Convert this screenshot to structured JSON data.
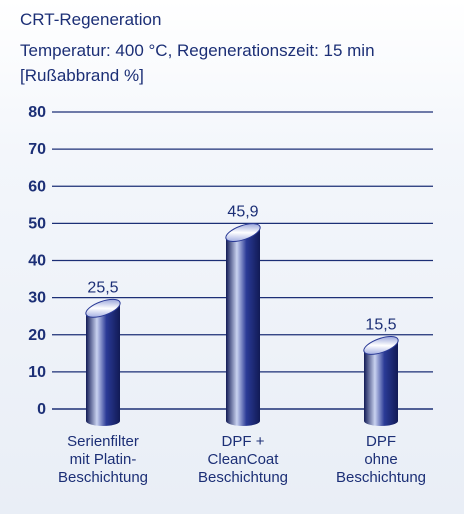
{
  "header": {
    "title": "CRT-Regeneration",
    "subtitle": "Temperatur: 400 °C, Regenerationszeit: 15 min",
    "unit_label": "[Rußabbrand %]"
  },
  "colors": {
    "text": "#1c2f76",
    "grid": "#1c2f76",
    "bar_dark": "#111a55",
    "bar_mid": "#2a3a96",
    "bar_light": "#c9d2f0"
  },
  "chart_data": {
    "type": "bar",
    "title": "CRT-Regeneration",
    "subtitle": "Temperatur: 400 °C, Regenerationszeit: 15 min",
    "xlabel": "",
    "ylabel": "[Rußabbrand %]",
    "ylim": [
      0,
      80
    ],
    "yticks": [
      0,
      10,
      20,
      30,
      40,
      50,
      60,
      70,
      80
    ],
    "grid": true,
    "categories": [
      [
        "Serienfilter",
        "mit Platin-",
        "Beschichtung"
      ],
      [
        "DPF +",
        "CleanCoat",
        "Beschichtung"
      ],
      [
        "DPF",
        "ohne",
        "Beschichtung"
      ]
    ],
    "values": [
      25.5,
      45.9,
      15.5
    ],
    "value_labels": [
      "25,5",
      "45,9",
      "15,5"
    ]
  }
}
